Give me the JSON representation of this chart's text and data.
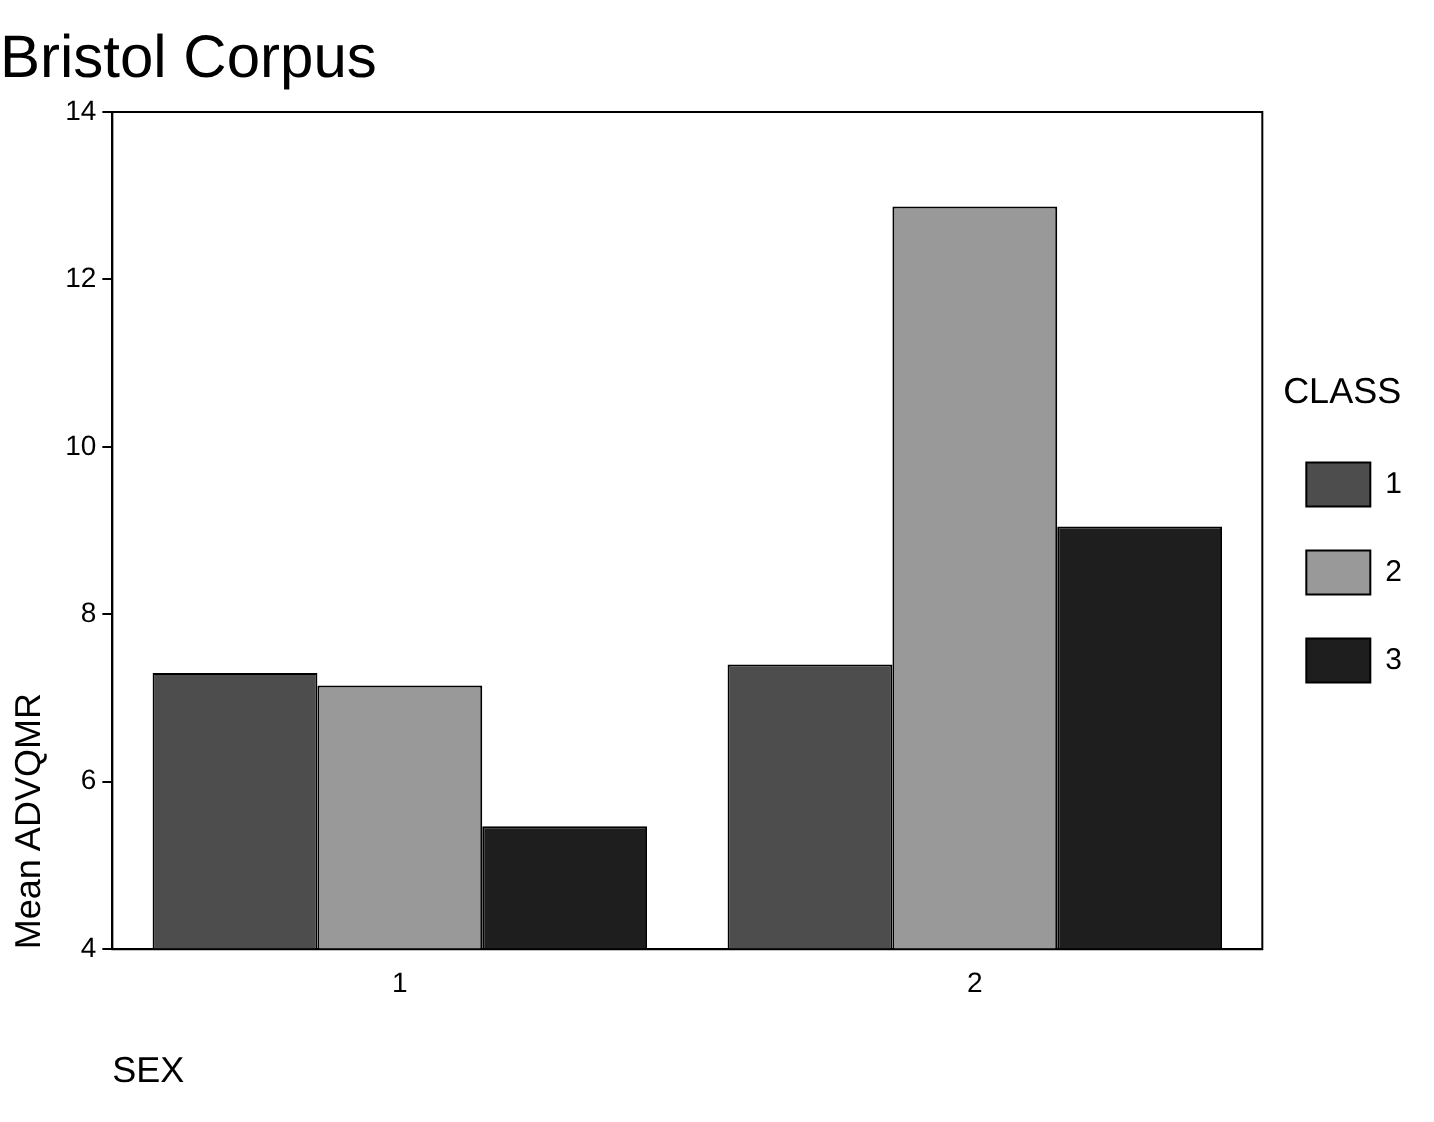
{
  "chart_data": {
    "type": "bar",
    "title": "Bristol Corpus",
    "xlabel": "SEX",
    "ylabel": "Mean ADVQMR",
    "legend_title": "CLASS",
    "categories": [
      "1",
      "2"
    ],
    "series": [
      {
        "name": "1",
        "color": "#4d4d4d",
        "values": [
          7.3,
          7.4
        ]
      },
      {
        "name": "2",
        "color": "#999999",
        "values": [
          7.15,
          12.87
        ]
      },
      {
        "name": "3",
        "color": "#1e1e1e",
        "values": [
          5.47,
          9.05
        ]
      }
    ],
    "ylim": [
      4,
      14
    ],
    "yticks": [
      4,
      6,
      8,
      10,
      12,
      14
    ],
    "grid": false,
    "legend": "right"
  }
}
